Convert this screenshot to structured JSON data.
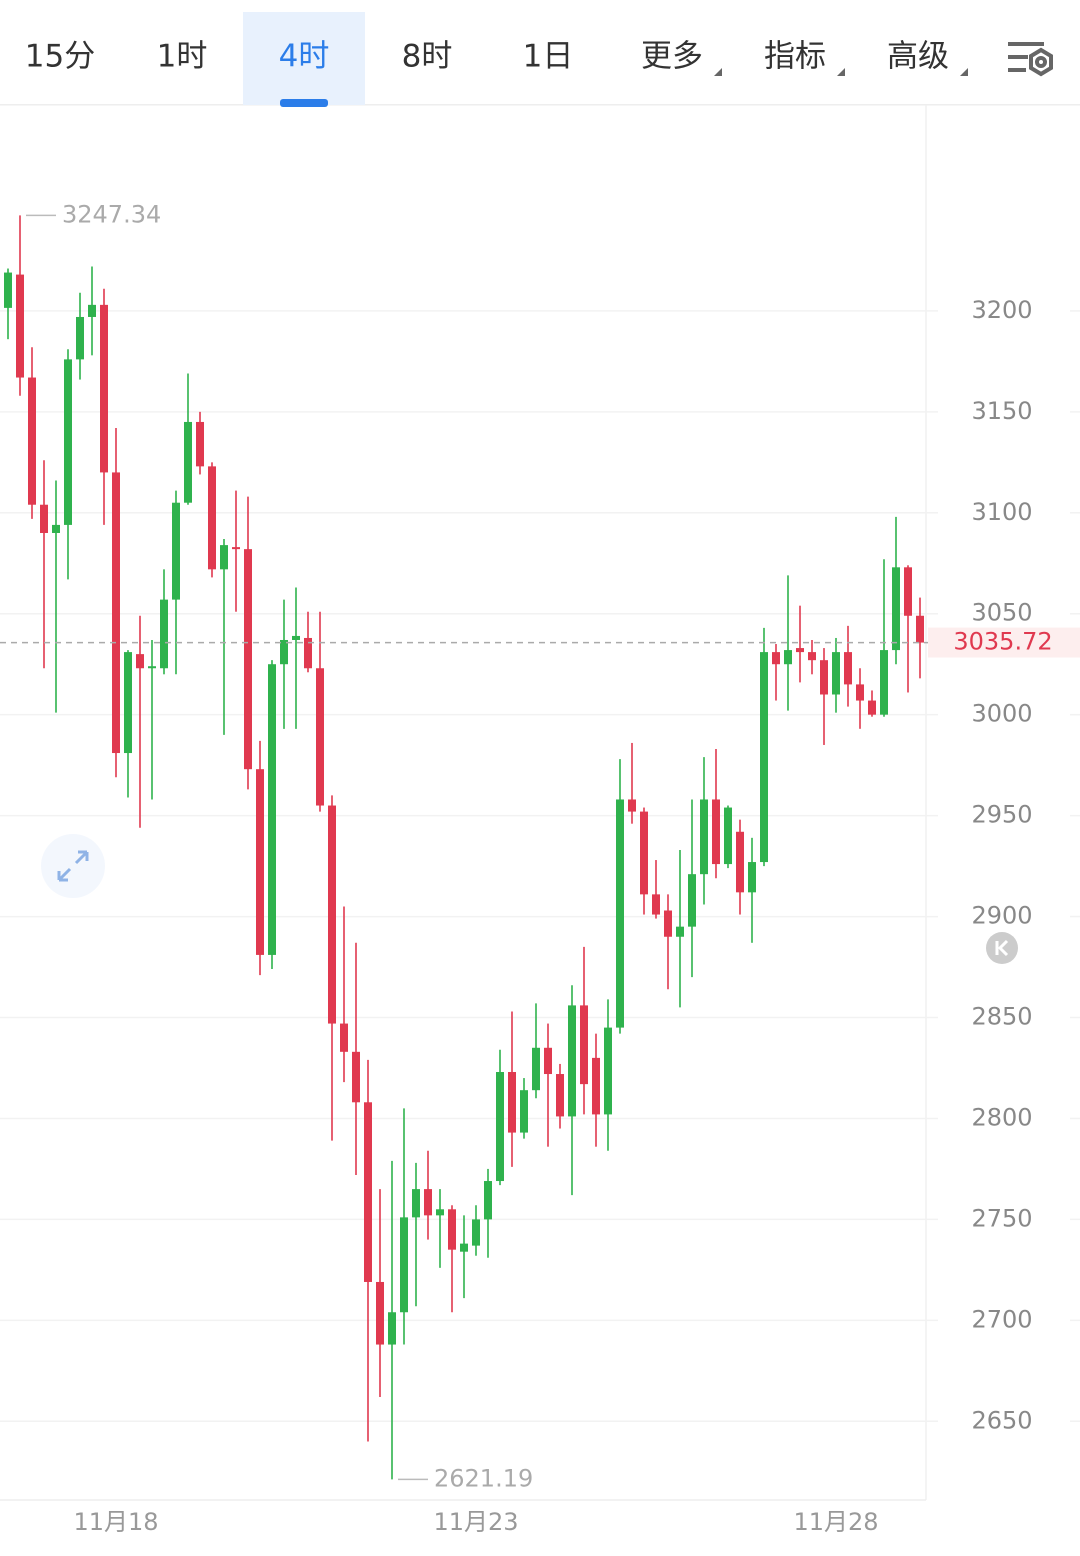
{
  "tabs": [
    "15分",
    "1时",
    "4时",
    "8时",
    "1日",
    "更多",
    "指标",
    "高级"
  ],
  "active_tab": 2,
  "chart_data": {
    "type": "candlestick",
    "up_color": "#2fb24d",
    "down_color": "#e0394f",
    "categories": [
      null,
      null,
      null,
      null,
      null,
      null,
      null,
      null,
      null,
      "11月18",
      null,
      null,
      null,
      null,
      null,
      null,
      null,
      null,
      null,
      null,
      null,
      null,
      null,
      null,
      null,
      null,
      null,
      null,
      null,
      null,
      null,
      null,
      null,
      null,
      null,
      null,
      null,
      null,
      null,
      "11月23",
      null,
      null,
      null,
      null,
      null,
      null,
      null,
      null,
      null,
      null,
      null,
      null,
      null,
      null,
      null,
      null,
      null,
      null,
      null,
      null,
      null,
      null,
      null,
      null,
      null,
      null,
      null,
      null,
      null,
      "11月28",
      null,
      null,
      null,
      null,
      null,
      null,
      null
    ],
    "open": [
      3201.5,
      3218,
      3167,
      3104,
      3090,
      3094,
      3176,
      3197,
      3203,
      3120,
      2981,
      3030,
      3023,
      3023,
      3057,
      3105,
      3145,
      3123,
      3072,
      3083,
      3082,
      2973,
      2881,
      3025,
      3037,
      3038,
      3023,
      2955,
      2847,
      2833,
      2808,
      2719,
      2688,
      2704,
      2751,
      2765,
      2752,
      2755,
      2734,
      2737,
      2750,
      2769,
      2823,
      2793,
      2814,
      2835,
      2822,
      2801,
      2856,
      2830,
      2802,
      2845,
      2958,
      2952,
      2911,
      2903,
      2890,
      2895,
      2921,
      2958,
      2926,
      2942,
      2912,
      2927,
      3031,
      3025,
      3033,
      3031,
      3027,
      3010,
      3031,
      3015,
      3007,
      3000,
      3032,
      3073,
      3049
    ],
    "high": [
      3221,
      3247.34,
      3182,
      3126,
      3116,
      3181,
      3209,
      3222,
      3211,
      3142,
      3032,
      3049,
      3037,
      3072,
      3111,
      3169,
      3150,
      3125,
      3087,
      3111,
      3108,
      2987,
      3027,
      3057,
      3063,
      3051,
      3051,
      2960,
      2905,
      2887,
      2829,
      2765,
      2779,
      2805,
      2778,
      2784,
      2765,
      2757,
      2752,
      2757,
      2775,
      2834,
      2853,
      2820,
      2857,
      2847,
      2827,
      2866,
      2885,
      2842,
      2859,
      2978,
      2986,
      2954,
      2928,
      2911,
      2933,
      2958,
      2979,
      2983,
      2955,
      2948,
      2939,
      3043,
      3035,
      3069,
      3054,
      3037,
      3033,
      3038,
      3044,
      3023,
      3012,
      3077,
      3098,
      3074,
      3058
    ],
    "low": [
      3186,
      3158,
      3097,
      3023,
      3001,
      3067,
      3166,
      3178,
      3094,
      2969,
      2959,
      2944,
      2958,
      3020,
      3020,
      3104,
      3119,
      3068,
      2990,
      3051,
      2963,
      2871,
      2874,
      2993,
      2993,
      3021,
      2952,
      2789,
      2818,
      2772,
      2640,
      2662,
      2621.19,
      2688,
      2707,
      2740,
      2726,
      2704,
      2711,
      2732,
      2731,
      2767,
      2776,
      2790,
      2810,
      2786,
      2795,
      2762,
      2802,
      2786,
      2784,
      2842,
      2946,
      2901,
      2899,
      2864,
      2855,
      2870,
      2906,
      2919,
      2924,
      2901,
      2887,
      2925,
      3007,
      3002,
      3016,
      3020,
      2985,
      3001,
      3004,
      2993,
      2999,
      2999,
      3025,
      3011,
      3018
    ],
    "close": [
      3219,
      3167,
      3104,
      3090,
      3094,
      3176,
      3197,
      3203,
      3120,
      2981,
      3031,
      3023,
      3024,
      3057,
      3105,
      3145,
      3123,
      3072,
      3084,
      3082,
      2973,
      2881,
      3025,
      3037,
      3039,
      3023,
      2955,
      2847,
      2833,
      2808,
      2719,
      2688,
      2704,
      2751,
      2765,
      2752,
      2755,
      2735,
      2738,
      2750,
      2769,
      2823,
      2793,
      2814,
      2835,
      2822,
      2801,
      2856,
      2817,
      2802,
      2845,
      2958,
      2952,
      2911,
      2901,
      2890,
      2895,
      2921,
      2958,
      2926,
      2954,
      2912,
      2927,
      3031,
      3025,
      3032,
      3031,
      3027,
      3010,
      3031,
      3015,
      3007,
      3000,
      3032,
      3073,
      3049,
      3035.72
    ],
    "ylim": [
      2611,
      3302
    ],
    "yticks": [
      2650,
      2700,
      2750,
      2800,
      2850,
      2900,
      2950,
      3000,
      3050,
      3100,
      3150,
      3200
    ],
    "grid": true
  }
}
